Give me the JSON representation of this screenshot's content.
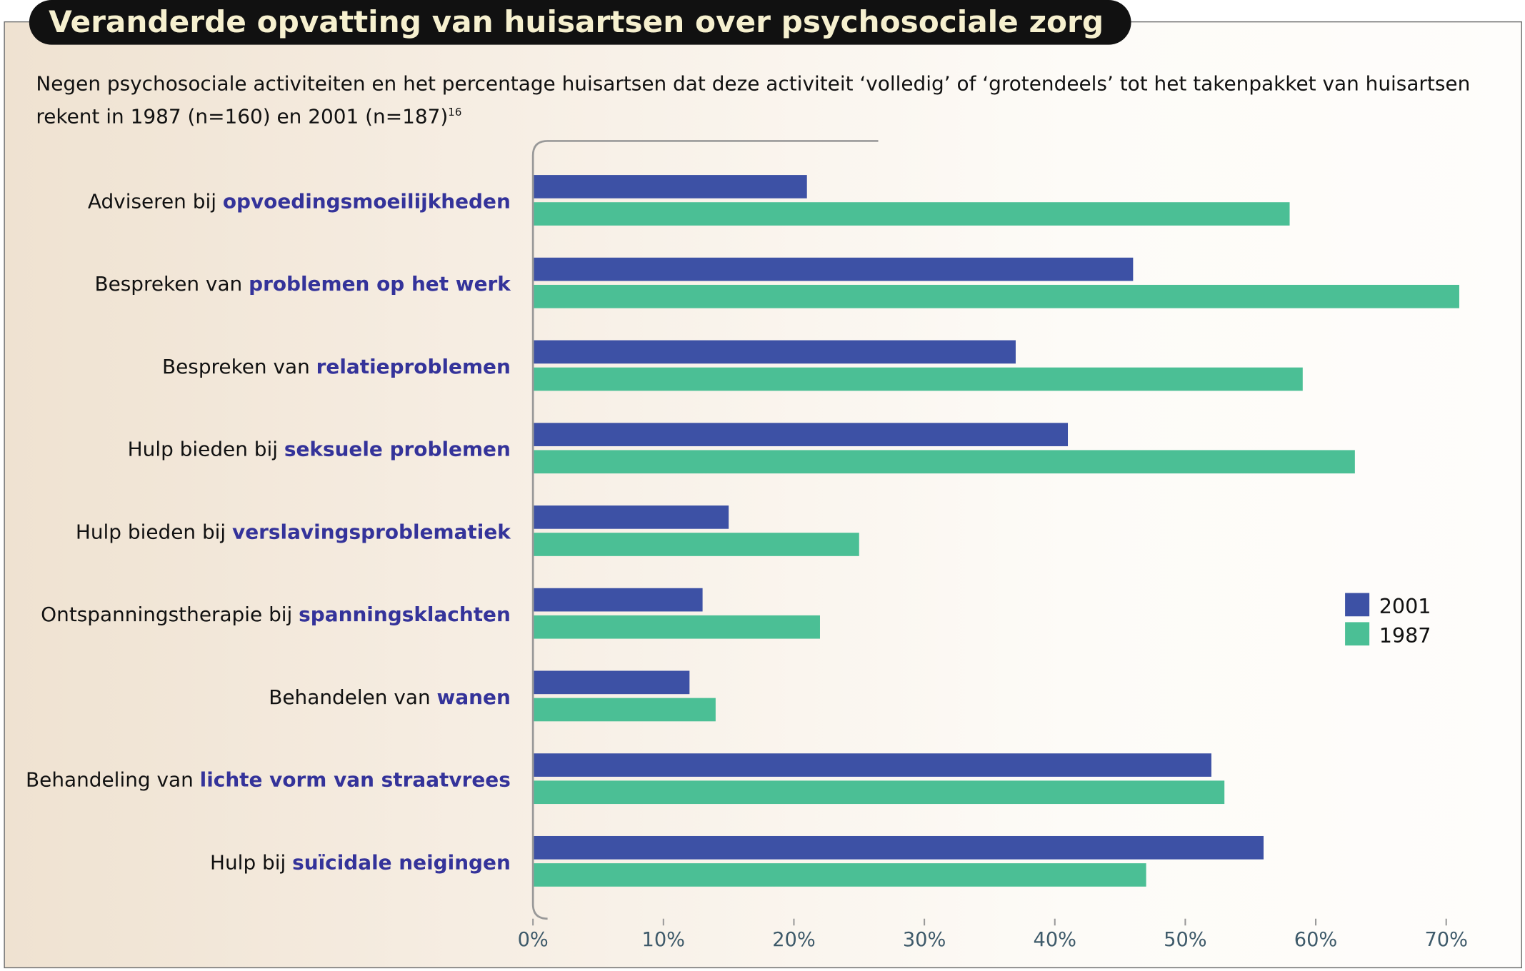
{
  "title": "Veranderde opvatting van huisartsen over psychosociale zorg",
  "subtitle": "Negen psychosociale activiteiten en het percentage huisartsen dat deze activiteit ‘volledig’ of ‘grotendeels’ tot het takenpakket van huisartsen rekent in 1987 (n=160) en 2001 (n=187)",
  "subtitle_ref": "16",
  "colors": {
    "2001": "#3d51a5",
    "1987": "#4bbf95"
  },
  "chart_data": {
    "type": "bar",
    "orientation": "horizontal",
    "categories": [
      {
        "prefix": "Adviseren bij ",
        "highlight": "opvoedingsmoeilijkheden"
      },
      {
        "prefix": "Bespreken van ",
        "highlight": "problemen op het werk"
      },
      {
        "prefix": "Bespreken van ",
        "highlight": "relatieproblemen"
      },
      {
        "prefix": "Hulp bieden bij ",
        "highlight": "seksuele problemen"
      },
      {
        "prefix": "Hulp bieden bij ",
        "highlight": "verslavingsproblematiek"
      },
      {
        "prefix": "Ontspanningstherapie bij ",
        "highlight": "spanningsklachten"
      },
      {
        "prefix": "Behandelen van ",
        "highlight": "wanen"
      },
      {
        "prefix": "Behandeling van ",
        "highlight": "lichte vorm van straatvrees"
      },
      {
        "prefix": "Hulp bij ",
        "highlight": "suïcidale neigingen"
      }
    ],
    "series": [
      {
        "name": "2001",
        "values": [
          21,
          46,
          37,
          41,
          15,
          13,
          12,
          52,
          56
        ]
      },
      {
        "name": "1987",
        "values": [
          58,
          71,
          59,
          63,
          25,
          22,
          14,
          53,
          47
        ]
      }
    ],
    "xlim": [
      0,
      70
    ],
    "xticks": [
      "0%",
      "10%",
      "20%",
      "30%",
      "40%",
      "50%",
      "60%",
      "70%"
    ],
    "legend_position": "right",
    "grid": false
  }
}
